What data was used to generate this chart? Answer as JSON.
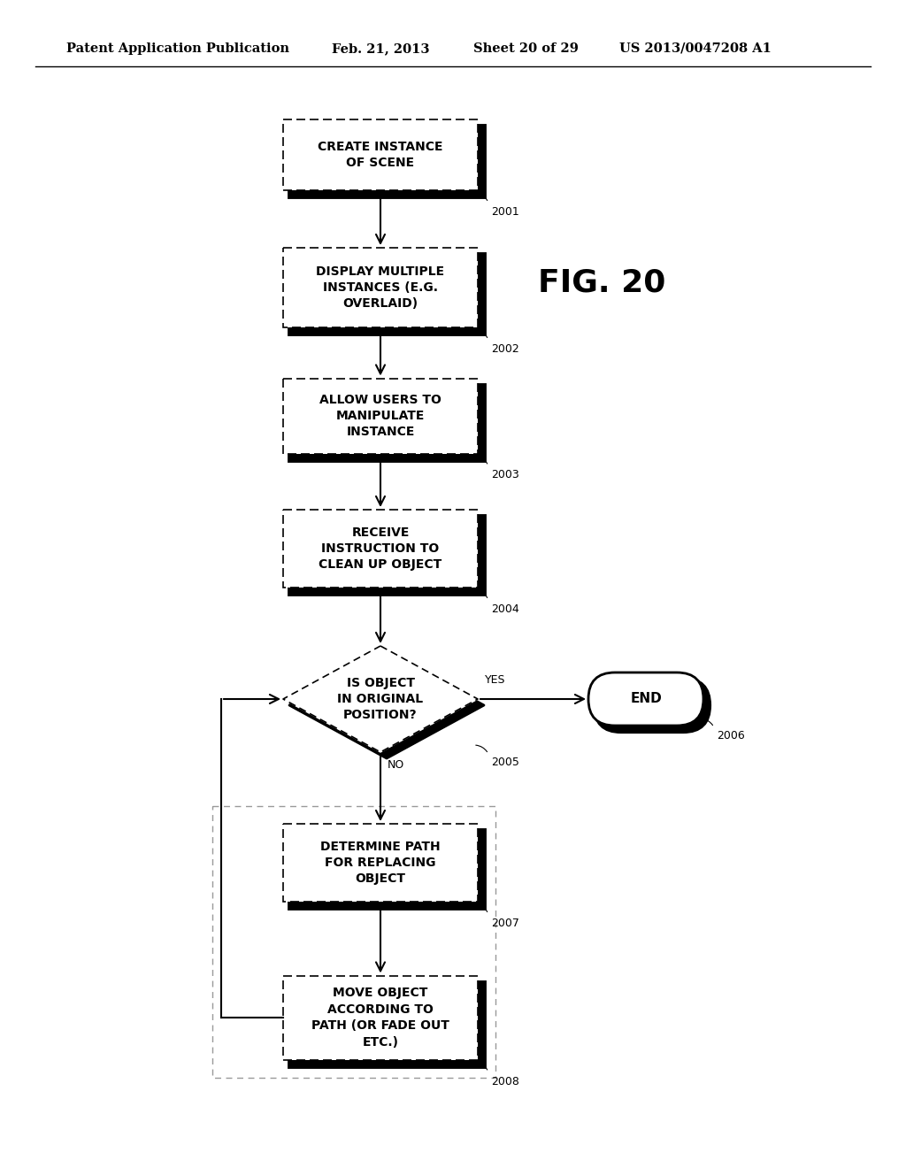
{
  "title_line1": "Patent Application Publication",
  "title_date": "Feb. 21, 2013",
  "title_sheet": "Sheet 20 of 29",
  "title_patent": "US 2013/0047208 A1",
  "fig_label": "FIG. 20",
  "background_color": "#ffffff"
}
